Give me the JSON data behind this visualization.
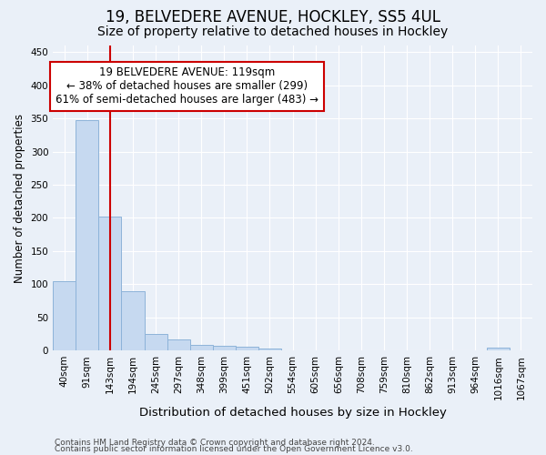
{
  "title": "19, BELVEDERE AVENUE, HOCKLEY, SS5 4UL",
  "subtitle": "Size of property relative to detached houses in Hockley",
  "xlabel": "Distribution of detached houses by size in Hockley",
  "ylabel": "Number of detached properties",
  "categories": [
    "40sqm",
    "91sqm",
    "143sqm",
    "194sqm",
    "245sqm",
    "297sqm",
    "348sqm",
    "399sqm",
    "451sqm",
    "502sqm",
    "554sqm",
    "605sqm",
    "656sqm",
    "708sqm",
    "759sqm",
    "810sqm",
    "862sqm",
    "913sqm",
    "964sqm",
    "1016sqm",
    "1067sqm"
  ],
  "values": [
    105,
    348,
    202,
    90,
    25,
    17,
    9,
    7,
    6,
    3,
    0,
    0,
    0,
    0,
    0,
    0,
    0,
    0,
    0,
    4,
    0
  ],
  "bar_color": "#c6d9f0",
  "bar_edge_color": "#8db3d9",
  "vline_color": "#cc0000",
  "annotation_text": "19 BELVEDERE AVENUE: 119sqm\n← 38% of detached houses are smaller (299)\n61% of semi-detached houses are larger (483) →",
  "annotation_box_color": "#ffffff",
  "annotation_box_edge": "#cc0000",
  "ylim": [
    0,
    460
  ],
  "yticks": [
    0,
    50,
    100,
    150,
    200,
    250,
    300,
    350,
    400,
    450
  ],
  "footer1": "Contains HM Land Registry data © Crown copyright and database right 2024.",
  "footer2": "Contains public sector information licensed under the Open Government Licence v3.0.",
  "bg_color": "#eaf0f8",
  "grid_color": "#ffffff",
  "title_fontsize": 12,
  "subtitle_fontsize": 10,
  "tick_fontsize": 7.5,
  "ylabel_fontsize": 8.5,
  "xlabel_fontsize": 9.5,
  "footer_fontsize": 6.5,
  "annotation_fontsize": 8.5
}
